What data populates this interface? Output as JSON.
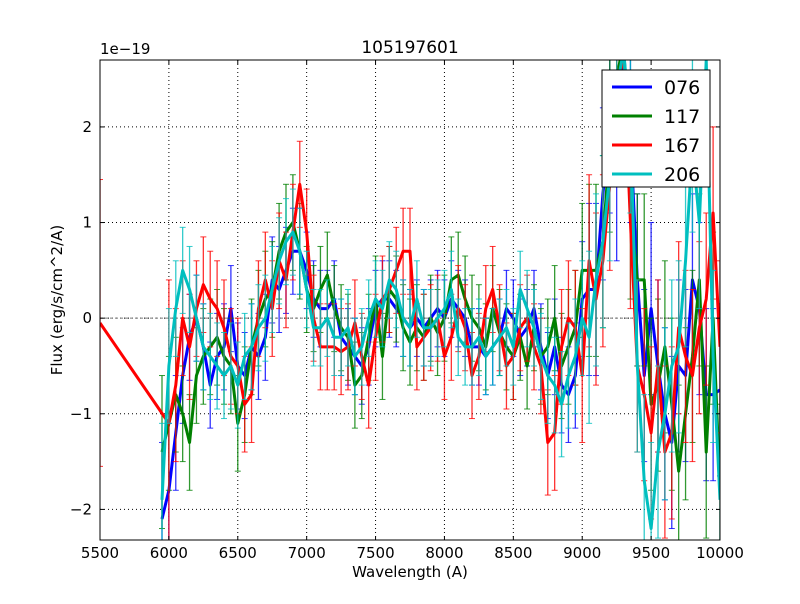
{
  "chart_data": {
    "type": "line",
    "title": "105197601",
    "xlabel": "Wavelength (A)",
    "ylabel": "Flux (erg/s/cm^2/A)",
    "y_offset_text": "1e−19",
    "xlim": [
      5500,
      10000
    ],
    "ylim": [
      -2.32,
      2.7
    ],
    "xticks": [
      5500,
      6000,
      6500,
      7000,
      7500,
      8000,
      8500,
      9000,
      9500,
      10000
    ],
    "yticks": [
      -2,
      -1,
      0,
      1,
      2
    ],
    "ytick_labels": [
      "−2",
      "−1",
      "0",
      "1",
      "2"
    ],
    "grid": true,
    "zero_line": true,
    "legend_position": "top-right",
    "x": [
      5950,
      6000,
      6050,
      6100,
      6150,
      6200,
      6250,
      6300,
      6350,
      6400,
      6450,
      6500,
      6550,
      6600,
      6650,
      6700,
      6750,
      6800,
      6850,
      6900,
      6950,
      7000,
      7050,
      7100,
      7150,
      7200,
      7250,
      7300,
      7350,
      7400,
      7450,
      7500,
      7550,
      7600,
      7650,
      7700,
      7750,
      7800,
      7850,
      7900,
      7950,
      8000,
      8050,
      8100,
      8150,
      8200,
      8250,
      8300,
      8350,
      8400,
      8450,
      8500,
      8550,
      8600,
      8650,
      8700,
      8750,
      8800,
      8850,
      8900,
      8950,
      9000,
      9050,
      9100,
      9150,
      9200,
      9250,
      9300,
      9350,
      9400,
      9450,
      9500,
      9550,
      9600,
      9650,
      9700,
      9750,
      9800,
      9850,
      9900,
      9950,
      10000
    ],
    "series": [
      {
        "name": "076",
        "color": "#0000ff",
        "values": [
          -2.1,
          -1.8,
          -1.2,
          -0.6,
          -0.2,
          0,
          -0.3,
          -0.7,
          -0.4,
          -0.3,
          0.1,
          -0.5,
          -0.6,
          -0.3,
          -0.4,
          -0.2,
          0.4,
          0.3,
          0.5,
          0.7,
          0.7,
          0.5,
          0.2,
          0.1,
          0.1,
          0.2,
          -0.2,
          -0.3,
          -0.4,
          -0.5,
          -0.3,
          0.1,
          0.2,
          0.2,
          0.1,
          0,
          -0.1,
          0,
          -0.1,
          0,
          0.1,
          0,
          0.2,
          0.1,
          0,
          -0.3,
          -0.3,
          -0.4,
          -0.3,
          -0.2,
          0.1,
          0,
          -0.2,
          -0.1,
          0.1,
          -0.3,
          -0.6,
          -0.3,
          -0.7,
          -0.8,
          -0.6,
          0.2,
          0.3,
          0.3,
          1.3,
          2.0,
          1.5,
          2.8,
          1.9,
          0.4,
          -0.6,
          0.1,
          -0.5,
          -1.0,
          -1.3,
          -0.5,
          -0.6,
          0.4,
          0.1,
          -0.8,
          -0.8,
          -0.75
        ],
        "err": [
          0.8,
          0.7,
          0.6,
          0.5,
          0.45,
          0.45,
          0.45,
          0.45,
          0.45,
          0.45,
          0.45,
          0.45,
          0.45,
          0.45,
          0.45,
          0.45,
          0.45,
          0.45,
          0.45,
          0.45,
          0.45,
          0.4,
          0.4,
          0.4,
          0.4,
          0.4,
          0.4,
          0.4,
          0.4,
          0.4,
          0.4,
          0.4,
          0.4,
          0.4,
          0.4,
          0.4,
          0.4,
          0.4,
          0.4,
          0.4,
          0.4,
          0.4,
          0.4,
          0.4,
          0.4,
          0.4,
          0.4,
          0.4,
          0.4,
          0.4,
          0.4,
          0.4,
          0.4,
          0.4,
          0.4,
          0.45,
          0.45,
          0.5,
          0.5,
          0.5,
          0.55,
          0.6,
          0.9,
          0.9,
          0.9,
          0.9,
          0.9,
          0.9,
          0.9,
          0.9,
          0.9,
          0.9,
          0.9,
          0.9,
          0.9,
          0.9,
          0.9,
          0.9,
          0.9,
          0.9,
          0.9,
          0.9
        ]
      },
      {
        "name": "117",
        "color": "#008000",
        "values": [
          -1.4,
          -1.1,
          -0.8,
          -1.0,
          -1.3,
          -0.6,
          -0.4,
          -0.3,
          -0.2,
          -0.4,
          -0.5,
          -1.1,
          -0.8,
          -0.3,
          0,
          0.2,
          0.3,
          0.7,
          0.9,
          1.0,
          0.7,
          0.3,
          0.1,
          0.3,
          0.45,
          0.1,
          -0.1,
          -0.2,
          -0.7,
          -0.6,
          -0.2,
          0.2,
          -0.4,
          0.3,
          0.2,
          -0.1,
          -0.25,
          -0.1,
          -0.2,
          0,
          -0.15,
          0,
          0.4,
          0.45,
          0.2,
          0,
          -0.1,
          -0.3,
          0.1,
          -0.15,
          -0.3,
          -0.4,
          -0.2,
          -0.5,
          -0.1,
          -0.4,
          -0.3,
          0,
          -0.5,
          -0.3,
          -0.1,
          0.5,
          0.5,
          0.5,
          0.8,
          1.8,
          2.5,
          2.9,
          1.1,
          0.4,
          0.4,
          -0.9,
          -0.7,
          -0.3,
          -0.9,
          -1.6,
          -1.0,
          -0.4,
          0.4,
          -1.4,
          0,
          -1.8
        ],
        "err": [
          0.8,
          0.7,
          0.6,
          0.5,
          0.5,
          0.5,
          0.5,
          0.5,
          0.5,
          0.5,
          0.5,
          0.5,
          0.5,
          0.5,
          0.5,
          0.5,
          0.5,
          0.5,
          0.5,
          0.5,
          0.5,
          0.45,
          0.45,
          0.45,
          0.45,
          0.45,
          0.45,
          0.45,
          0.45,
          0.45,
          0.45,
          0.45,
          0.45,
          0.45,
          0.45,
          0.45,
          0.45,
          0.45,
          0.45,
          0.45,
          0.45,
          0.45,
          0.45,
          0.45,
          0.45,
          0.45,
          0.45,
          0.45,
          0.45,
          0.45,
          0.45,
          0.45,
          0.45,
          0.45,
          0.45,
          0.5,
          0.5,
          0.55,
          0.55,
          0.6,
          0.6,
          0.7,
          0.9,
          0.9,
          0.9,
          0.9,
          0.9,
          0.9,
          0.9,
          0.9,
          0.9,
          0.9,
          0.9,
          0.9,
          0.9,
          0.9,
          0.9,
          0.9,
          0.9,
          0.9,
          0.9,
          0.9
        ]
      },
      {
        "name": "167",
        "color": "#ff0000",
        "lead_point": {
          "x": 5500,
          "y": -0.05,
          "err": 1.5
        },
        "values": [
          null,
          -1.1,
          -0.7,
          0,
          -0.3,
          0.1,
          0.35,
          0.2,
          0.1,
          -0.1,
          -0.4,
          -0.5,
          -0.9,
          -0.8,
          0.1,
          0.4,
          0.1,
          0.6,
          0.4,
          0.9,
          1.4,
          0.9,
          0,
          -0.3,
          -0.3,
          -0.3,
          -0.35,
          -0.3,
          -0.05,
          -0.4,
          -0.7,
          -0.2,
          0.2,
          0.3,
          0.5,
          0.7,
          0.7,
          -0.3,
          -0.2,
          -0.1,
          0,
          -0.4,
          -0.2,
          0.1,
          -0.1,
          -0.6,
          -0.4,
          0.1,
          0.3,
          -0.1,
          -0.5,
          -0.4,
          -0.1,
          0,
          -0.3,
          -0.5,
          -1.3,
          -1.2,
          -0.3,
          0,
          -0.1,
          -0.6,
          0.6,
          0.2,
          0.6,
          1.4,
          2.5,
          2.7,
          1.0,
          -0.5,
          -0.8,
          -1.2,
          -0.5,
          -1.4,
          -1.2,
          -0.1,
          -0.4,
          -0.6,
          -0.1,
          0.2,
          1.1,
          -0.3
        ],
        "err": [
          0,
          1.5,
          0.8,
          0.6,
          0.55,
          0.5,
          0.5,
          0.5,
          0.5,
          0.5,
          0.5,
          0.5,
          0.5,
          0.5,
          0.5,
          0.5,
          0.5,
          0.5,
          0.5,
          0.5,
          0.45,
          0.45,
          0.45,
          0.45,
          0.45,
          0.45,
          0.45,
          0.45,
          0.45,
          0.45,
          0.45,
          0.45,
          0.45,
          0.45,
          0.45,
          0.45,
          0.45,
          0.45,
          0.45,
          0.45,
          0.45,
          0.45,
          0.45,
          0.45,
          0.45,
          0.45,
          0.45,
          0.45,
          0.45,
          0.45,
          0.45,
          0.45,
          0.45,
          0.45,
          0.45,
          0.5,
          0.55,
          0.6,
          0.6,
          0.6,
          0.6,
          0.7,
          0.9,
          0.9,
          0.9,
          0.9,
          0.9,
          0.9,
          0.9,
          0.9,
          0.9,
          0.9,
          0.9,
          0.9,
          0.9,
          0.9,
          0.9,
          0.9,
          0.9,
          0.9,
          0.9,
          0.9
        ]
      },
      {
        "name": "206",
        "color": "#00bfbf",
        "values": [
          -1.9,
          -0.5,
          0.1,
          0.5,
          0.3,
          0,
          -0.3,
          -0.4,
          -0.5,
          -0.6,
          -0.5,
          -0.7,
          -0.4,
          -0.3,
          -0.1,
          0,
          0.3,
          0.6,
          0.8,
          0.9,
          0.7,
          0.3,
          -0.1,
          -0.1,
          0,
          -0.2,
          -0.2,
          -0.1,
          -0.4,
          -0.3,
          0,
          0.2,
          0.1,
          0.4,
          0.3,
          0,
          -0.1,
          0.2,
          -0.1,
          -0.1,
          0,
          0.1,
          0.3,
          -0.2,
          -0.3,
          -0.3,
          -0.2,
          -0.4,
          -0.3,
          -0.2,
          -0.1,
          -0.3,
          0.3,
          0.1,
          -0.1,
          -0.4,
          -0.6,
          -0.7,
          -0.9,
          -0.6,
          -0.4,
          0,
          -0.2,
          0.4,
          0.8,
          1.5,
          2.4,
          2.8,
          2.0,
          -0.5,
          -1.7,
          -2.2,
          -1.4,
          -1.0,
          -0.5,
          -0.3,
          0.6,
          1.8,
          1.0,
          2.7,
          -0.4,
          -1.9
        ],
        "err": [
          0.8,
          0.6,
          0.5,
          0.45,
          0.45,
          0.45,
          0.45,
          0.45,
          0.45,
          0.45,
          0.45,
          0.45,
          0.45,
          0.45,
          0.45,
          0.45,
          0.45,
          0.45,
          0.45,
          0.45,
          0.45,
          0.4,
          0.4,
          0.4,
          0.4,
          0.4,
          0.4,
          0.4,
          0.4,
          0.4,
          0.4,
          0.4,
          0.4,
          0.4,
          0.4,
          0.4,
          0.4,
          0.4,
          0.4,
          0.4,
          0.4,
          0.4,
          0.4,
          0.4,
          0.4,
          0.4,
          0.4,
          0.4,
          0.4,
          0.4,
          0.4,
          0.4,
          0.4,
          0.4,
          0.4,
          0.45,
          0.5,
          0.5,
          0.55,
          0.55,
          0.6,
          0.6,
          0.9,
          0.9,
          0.9,
          0.9,
          0.9,
          0.9,
          0.9,
          0.9,
          0.9,
          0.9,
          0.9,
          0.9,
          0.9,
          0.9,
          0.9,
          0.9,
          0.9,
          0.9,
          0.9,
          0.9
        ]
      }
    ]
  }
}
